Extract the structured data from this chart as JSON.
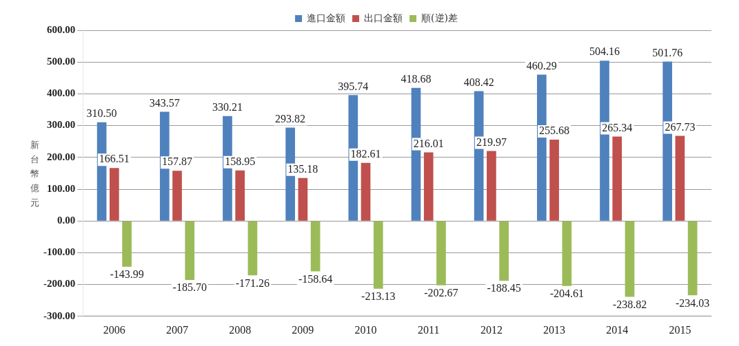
{
  "chart_data": {
    "type": "bar",
    "ylabel": "新台幣億元",
    "categories": [
      "2006",
      "2007",
      "2008",
      "2009",
      "2010",
      "2011",
      "2012",
      "2013",
      "2014",
      "2015"
    ],
    "series": [
      {
        "name": "進口金額",
        "color": "#4f81bd",
        "values": [
          310.5,
          343.57,
          330.21,
          293.82,
          395.74,
          418.68,
          408.42,
          460.29,
          504.16,
          501.76
        ],
        "value_labels": [
          "310.50",
          "343.57",
          "330.21",
          "293.82",
          "395.74",
          "418.68",
          "408.42",
          "460.29",
          "504.16",
          "501.76"
        ]
      },
      {
        "name": "出口金額",
        "color": "#c0504d",
        "values": [
          166.51,
          157.87,
          158.95,
          135.18,
          182.61,
          216.01,
          219.97,
          255.68,
          265.34,
          267.73
        ],
        "value_labels": [
          "166.51",
          "157.87",
          "158.95",
          "135.18",
          "182.61",
          "216.01",
          "219.97",
          "255.68",
          "265.34",
          "267.73"
        ]
      },
      {
        "name": "順(逆)差",
        "color": "#9bbb59",
        "values": [
          -143.99,
          -185.7,
          -171.26,
          -158.64,
          -213.13,
          -202.67,
          -188.45,
          -204.61,
          -238.82,
          -234.03
        ],
        "value_labels": [
          "-143.99",
          "-185.70",
          "-171.26",
          "-158.64",
          "-213.13",
          "-202.67",
          "-188.45",
          "-204.61",
          "-238.82",
          "-234.03"
        ]
      }
    ],
    "ylim": [
      -300,
      600
    ],
    "yticks": [
      {
        "value": -300,
        "label": "-300.00"
      },
      {
        "value": -200,
        "label": "-200.00"
      },
      {
        "value": -100,
        "label": "-100.00"
      },
      {
        "value": 0,
        "label": "0.00"
      },
      {
        "value": 100,
        "label": "100.00"
      },
      {
        "value": 200,
        "label": "200.00"
      },
      {
        "value": 300,
        "label": "300.00"
      },
      {
        "value": 400,
        "label": "400.00"
      },
      {
        "value": 500,
        "label": "500.00"
      },
      {
        "value": 600,
        "label": "600.00"
      }
    ],
    "grid": "y",
    "legend": "top"
  }
}
